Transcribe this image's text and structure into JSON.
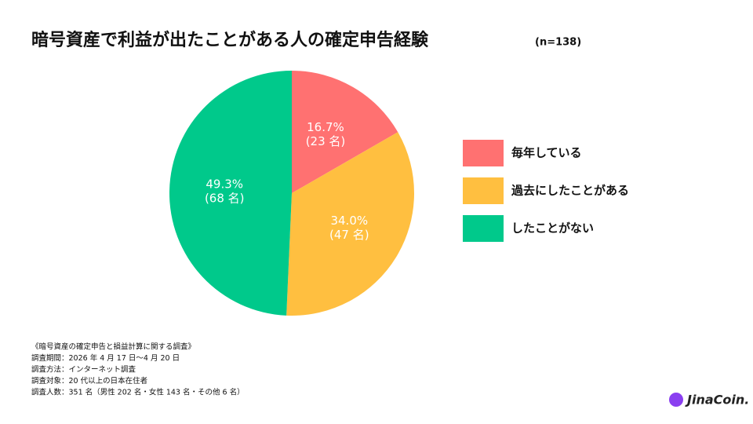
{
  "chart_data": {
    "type": "pie",
    "title": "暗号資産で利益が出たことがある人の確定申告経験",
    "subtitle": "(n=138)",
    "categories": [
      "毎年している",
      "過去にしたことがある",
      "したことがない"
    ],
    "values": [
      16.7,
      34.0,
      49.3
    ],
    "value_labels": [
      "16.7%",
      "34.0%",
      "49.3%"
    ],
    "count_labels": [
      "(23 名)",
      "(47 名)",
      "(68 名)"
    ],
    "colors": [
      "#ff7171",
      "#ffbf40",
      "#00c98b"
    ],
    "notes": [
      "《暗号資産の確定申告と損益計算に関する調査》",
      "調査期間：2026 年 4 月 17 日〜4 月 20 日",
      "調査方法：インターネット調査",
      "調査対象：20 代以上の日本在住者",
      "調査人数：351 名（男性 202 名・女性 143 名・その他 6 名）"
    ],
    "logo": "JinaCoin."
  }
}
